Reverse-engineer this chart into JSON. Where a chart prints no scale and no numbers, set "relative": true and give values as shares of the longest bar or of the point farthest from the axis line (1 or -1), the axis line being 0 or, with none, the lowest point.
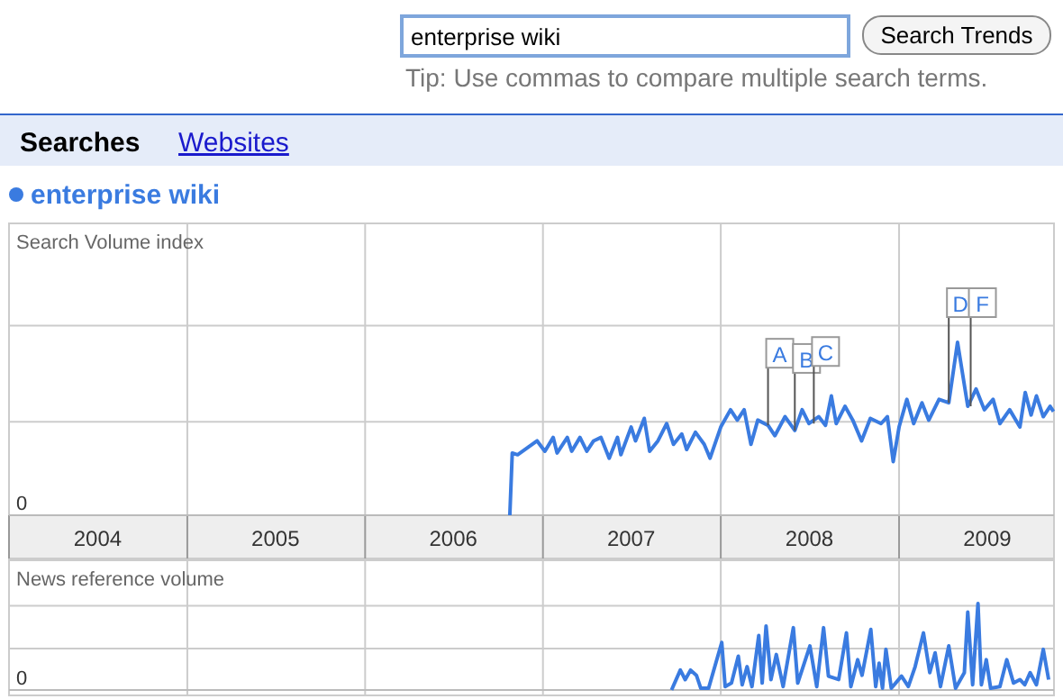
{
  "chart_data": [
    {
      "type": "other",
      "annotations": [
        "enterprise wiki",
        "Search Trends",
        "Tip: Use commas to compare multiple search terms.",
        "Searches",
        "Websites"
      ]
    },
    {
      "type": "line",
      "ylabel": "Search Volume index",
      "relative": true,
      "grid": true,
      "legend": "top left",
      "xlim": [
        "2004-01-01",
        "2009-11-15"
      ],
      "xticks": [
        {
          "value": "2004-01-01",
          "label": null
        },
        {
          "value": "2004-07-01",
          "label": "2004"
        },
        {
          "value": "2005-01-01",
          "label": null
        },
        {
          "value": "2005-07-01",
          "label": "2005"
        },
        {
          "value": "2006-01-01",
          "label": null
        },
        {
          "value": "2006-07-01",
          "label": "2006"
        },
        {
          "value": "2007-01-01",
          "label": null
        },
        {
          "value": "2007-07-01",
          "label": "2007"
        },
        {
          "value": "2008-01-01",
          "label": null
        },
        {
          "value": "2008-07-01",
          "label": "2008"
        },
        {
          "value": "2009-01-01",
          "label": null
        },
        {
          "value": "2009-07-01",
          "label": "2009"
        }
      ],
      "annotations": [
        "0",
        {
          "text": "A",
          "x": "2008-04-07",
          "y": 0.52
        },
        {
          "text": "B",
          "x": "2008-06-01",
          "y": 0.49
        },
        {
          "text": "C",
          "x": "2008-07-10",
          "y": 0.53
        },
        {
          "text": "D",
          "x": "2009-04-13",
          "y": 0.65
        },
        {
          "text": "F",
          "x": "2009-05-28",
          "y": 0.63
        }
      ],
      "series": [
        {
          "name": "enterprise wiki",
          "color": "#3a7be0",
          "x": [
            "2006-10-25",
            "2006-10-30",
            "2006-11-10",
            "2006-12-20",
            "2007-01-05",
            "2007-01-22",
            "2007-01-30",
            "2007-02-20",
            "2007-03-01",
            "2007-03-18",
            "2007-04-01",
            "2007-04-15",
            "2007-04-30",
            "2007-05-17",
            "2007-06-03",
            "2007-06-10",
            "2007-07-01",
            "2007-07-10",
            "2007-07-28",
            "2007-08-08",
            "2007-08-25",
            "2007-09-12",
            "2007-09-26",
            "2007-10-13",
            "2007-10-23",
            "2007-11-10",
            "2007-11-28",
            "2007-12-10",
            "2008-01-01",
            "2008-01-21",
            "2008-02-04",
            "2008-02-18",
            "2008-03-03",
            "2008-03-17",
            "2008-04-07",
            "2008-04-21",
            "2008-05-12",
            "2008-06-01",
            "2008-06-16",
            "2008-06-30",
            "2008-07-20",
            "2008-08-03",
            "2008-08-15",
            "2008-08-25",
            "2008-09-12",
            "2008-09-28",
            "2008-10-16",
            "2008-11-03",
            "2008-11-25",
            "2008-12-08",
            "2008-12-20",
            "2009-01-01",
            "2009-01-17",
            "2009-01-31",
            "2009-02-17",
            "2009-03-03",
            "2009-03-24",
            "2009-04-13",
            "2009-05-01",
            "2009-05-22",
            "2009-06-08",
            "2009-06-25",
            "2009-07-13",
            "2009-07-27",
            "2009-08-16",
            "2009-09-06",
            "2009-09-17",
            "2009-09-29",
            "2009-10-10",
            "2009-10-24",
            "2009-11-07",
            "2009-11-14"
          ],
          "values": [
            0,
            0.36,
            0.35,
            0.43,
            0.37,
            0.45,
            0.36,
            0.45,
            0.37,
            0.45,
            0.37,
            0.43,
            0.45,
            0.33,
            0.45,
            0.35,
            0.51,
            0.43,
            0.56,
            0.37,
            0.43,
            0.53,
            0.41,
            0.47,
            0.38,
            0.48,
            0.41,
            0.33,
            0.51,
            0.61,
            0.55,
            0.61,
            0.41,
            0.55,
            0.52,
            0.46,
            0.57,
            0.49,
            0.61,
            0.53,
            0.57,
            0.52,
            0.69,
            0.53,
            0.63,
            0.55,
            0.43,
            0.56,
            0.53,
            0.57,
            0.31,
            0.51,
            0.67,
            0.53,
            0.65,
            0.55,
            0.67,
            0.65,
            1,
            0.63,
            0.73,
            0.61,
            0.67,
            0.53,
            0.61,
            0.51,
            0.71,
            0.58,
            0.69,
            0.57,
            0.63,
            0.6
          ]
        }
      ]
    },
    {
      "type": "line",
      "ylabel": "News reference volume",
      "relative": true,
      "grid": true,
      "tick_labels": false,
      "xlim": [
        "2004-01-01",
        "2009-11-15"
      ],
      "xticks": [
        {
          "value": "2004-01-01",
          "label": null
        },
        {
          "value": "2005-01-01",
          "label": null
        },
        {
          "value": "2006-01-01",
          "label": null
        },
        {
          "value": "2007-01-01",
          "label": null
        },
        {
          "value": "2008-01-01",
          "label": null
        },
        {
          "value": "2009-01-01",
          "label": null
        }
      ],
      "annotations": [
        "0"
      ],
      "series": [
        {
          "color": "#3a7be0",
          "x": [
            "2007-09-22",
            "2007-10-10",
            "2007-10-20",
            "2007-10-31",
            "2007-11-12",
            "2007-11-21",
            "2007-12-07",
            "2008-01-03",
            "2008-01-10",
            "2008-01-23",
            "2008-02-06",
            "2008-02-14",
            "2008-02-24",
            "2008-03-05",
            "2008-03-19",
            "2008-03-26",
            "2008-04-03",
            "2008-04-13",
            "2008-04-24",
            "2008-05-08",
            "2008-05-29",
            "2008-06-07",
            "2008-07-02",
            "2008-07-16",
            "2008-07-30",
            "2008-08-09",
            "2008-08-30",
            "2008-09-15",
            "2008-09-24",
            "2008-10-08",
            "2008-10-17",
            "2008-11-04",
            "2008-11-14",
            "2008-11-21",
            "2008-11-28",
            "2008-12-05",
            "2008-12-16",
            "2009-01-06",
            "2009-01-20",
            "2009-02-03",
            "2009-02-20",
            "2009-03-05",
            "2009-03-16",
            "2009-03-27",
            "2009-04-13",
            "2009-04-27",
            "2009-05-15",
            "2009-05-22",
            "2009-06-01",
            "2009-06-12",
            "2009-06-19",
            "2009-06-29",
            "2009-07-08",
            "2009-07-27",
            "2009-08-10",
            "2009-08-24",
            "2009-09-06",
            "2009-09-16",
            "2009-09-27",
            "2009-10-10",
            "2009-10-24",
            "2009-11-04"
          ],
          "values": [
            0,
            0.23,
            0.12,
            0.23,
            0.17,
            0.02,
            0.02,
            0.55,
            0.04,
            0.08,
            0.39,
            0.06,
            0.27,
            0.04,
            0.63,
            0.08,
            0.74,
            0.12,
            0.41,
            0.04,
            0.72,
            0.08,
            0.51,
            0.04,
            0.72,
            0.16,
            0.12,
            0.66,
            0.04,
            0.35,
            0.17,
            0.7,
            0.04,
            0.31,
            0.02,
            0.47,
            0.02,
            0.16,
            0.04,
            0.27,
            0.66,
            0.2,
            0.43,
            0.04,
            0.51,
            0.02,
            0.2,
            0.9,
            0.06,
            1,
            0.06,
            0.35,
            0.02,
            0.04,
            0.35,
            0.08,
            0.12,
            0.06,
            0.2,
            0.06,
            0.47,
            0.12
          ]
        }
      ]
    }
  ]
}
